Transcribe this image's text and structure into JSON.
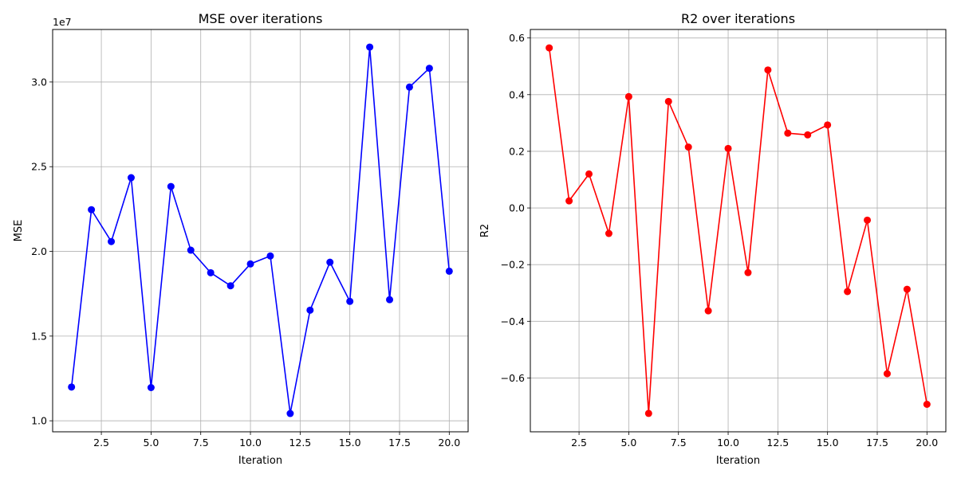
{
  "chart_data": [
    {
      "type": "line",
      "title": "MSE over iterations",
      "xlabel": "Iteration",
      "ylabel": "MSE",
      "y_offset_label": "1e7",
      "xlim": [
        0.05,
        20.95
      ],
      "ylim": [
        9350000.0,
        33100000.0
      ],
      "xticks": [
        2.5,
        5.0,
        7.5,
        10.0,
        12.5,
        15.0,
        17.5,
        20.0
      ],
      "xtick_labels": [
        "2.5",
        "5.0",
        "7.5",
        "10.0",
        "12.5",
        "15.0",
        "17.5",
        "20.0"
      ],
      "yticks": [
        10000000.0,
        15000000.0,
        20000000.0,
        25000000.0,
        30000000.0
      ],
      "ytick_labels": [
        "1.0",
        "1.5",
        "2.0",
        "2.5",
        "3.0"
      ],
      "grid": true,
      "color": "#0000ff",
      "series": [
        {
          "x": [
            1,
            2,
            3,
            4,
            5,
            6,
            7,
            8,
            9,
            10,
            11,
            12,
            13,
            14,
            15,
            16,
            17,
            18,
            19,
            20
          ],
          "y": [
            11990000,
            22460000,
            20580000,
            24350000,
            11960000,
            23830000,
            20070000,
            18740000,
            17970000,
            19260000,
            19730000,
            10430000,
            16530000,
            19360000,
            17050000,
            32060000,
            17150000,
            29700000,
            30810000,
            18830000
          ]
        }
      ]
    },
    {
      "type": "line",
      "title": "R2 over iterations",
      "xlabel": "Iteration",
      "ylabel": "R2",
      "xlim": [
        0.05,
        20.95
      ],
      "ylim": [
        -0.79,
        0.63
      ],
      "xticks": [
        2.5,
        5.0,
        7.5,
        10.0,
        12.5,
        15.0,
        17.5,
        20.0
      ],
      "xtick_labels": [
        "2.5",
        "5.0",
        "7.5",
        "10.0",
        "12.5",
        "15.0",
        "17.5",
        "20.0"
      ],
      "yticks": [
        -0.6,
        -0.4,
        -0.2,
        0.0,
        0.2,
        0.4,
        0.6
      ],
      "ytick_labels": [
        "−0.6",
        "−0.4",
        "−0.2",
        "0.0",
        "0.2",
        "0.4",
        "0.6"
      ],
      "grid": true,
      "color": "#ff0000",
      "series": [
        {
          "x": [
            1,
            2,
            3,
            4,
            5,
            6,
            7,
            8,
            9,
            10,
            11,
            12,
            13,
            14,
            15,
            16,
            17,
            18,
            19,
            20
          ],
          "y": [
            0.565,
            0.025,
            0.12,
            -0.09,
            0.393,
            -0.725,
            0.376,
            0.215,
            -0.363,
            0.21,
            -0.228,
            0.487,
            0.264,
            0.258,
            0.293,
            -0.295,
            -0.043,
            -0.585,
            -0.287,
            -0.693
          ]
        }
      ]
    }
  ]
}
